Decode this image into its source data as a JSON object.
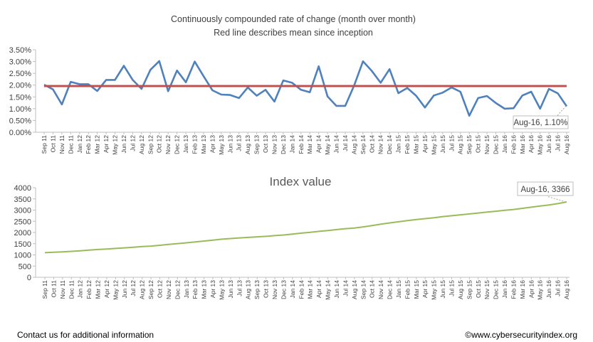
{
  "months": [
    "Sep 11",
    "Oct 11",
    "Nov 11",
    "Dec 11",
    "Jan 12",
    "Feb 12",
    "Mar 12",
    "Apr 12",
    "May 12",
    "Jun 12",
    "Jul 12",
    "Aug 12",
    "Sep 12",
    "Oct 12",
    "Nov 12",
    "Dec 12",
    "Jan 13",
    "Feb 13",
    "Mar 13",
    "Apr 13",
    "May 13",
    "Jun 13",
    "Jul 13",
    "Aug 13",
    "Sep 13",
    "Oct 13",
    "Nov 13",
    "Dec 13",
    "Jan 14",
    "Feb 14",
    "Mar 14",
    "Apr 14",
    "May 14",
    "Jun 14",
    "Jul 14",
    "Aug 14",
    "Sep 14",
    "Oct 14",
    "Nov 14",
    "Dec 14",
    "Jan 15",
    "Feb 15",
    "Mar 15",
    "Apr 15",
    "May 15",
    "Jun 15",
    "Jul 15",
    "Aug 15",
    "Sep 15",
    "Oct 15",
    "Nov 15",
    "Dec 15",
    "Jan 16",
    "Feb 16",
    "Mar 16",
    "Apr 16",
    "May 16",
    "Jun 16",
    "Jul 16",
    "Aug 16"
  ],
  "chart_data": [
    {
      "type": "line",
      "title": "Continuously compounded rate of change (month over month)",
      "subtitle": "Red line describes mean since inception",
      "ylim": [
        0,
        3.5
      ],
      "yticks": [
        "0.00%",
        "0.50%",
        "1.00%",
        "1.50%",
        "2.00%",
        "2.50%",
        "3.00%",
        "3.50%"
      ],
      "grid": false,
      "series": [
        {
          "values": [
            2.02,
            1.82,
            1.18,
            2.14,
            2.04,
            2.04,
            1.75,
            2.22,
            2.22,
            2.82,
            2.22,
            1.84,
            2.65,
            3.02,
            1.74,
            2.62,
            2.12,
            3.0,
            2.38,
            1.78,
            1.6,
            1.58,
            1.45,
            1.9,
            1.55,
            1.8,
            1.3,
            2.2,
            2.1,
            1.8,
            1.7,
            2.8,
            1.52,
            1.12,
            1.12,
            1.98,
            3.01,
            2.6,
            2.1,
            2.68,
            1.66,
            1.88,
            1.55,
            1.05,
            1.56,
            1.68,
            1.9,
            1.72,
            0.7,
            1.45,
            1.54,
            1.24,
            1.0,
            1.02,
            1.56,
            1.72,
            1.0,
            1.84,
            1.65,
            1.1
          ],
          "color": "#4f81bd"
        },
        {
          "values": [
            1.96
          ],
          "color": "#c0504d",
          "kind": "mean"
        }
      ],
      "annotation": "Aug-16, 1.10%"
    },
    {
      "type": "line",
      "title": "Index value",
      "ylim": [
        0,
        4000
      ],
      "yticks": [
        "0",
        "500",
        "1000",
        "1500",
        "2000",
        "2500",
        "3000",
        "3500",
        "4000"
      ],
      "grid": false,
      "series": [
        {
          "values": [
            1100,
            1120,
            1135,
            1160,
            1185,
            1215,
            1240,
            1265,
            1290,
            1315,
            1340,
            1370,
            1395,
            1430,
            1470,
            1505,
            1540,
            1580,
            1620,
            1660,
            1700,
            1730,
            1760,
            1780,
            1805,
            1830,
            1860,
            1890,
            1930,
            1970,
            2010,
            2050,
            2090,
            2130,
            2170,
            2200,
            2250,
            2310,
            2370,
            2430,
            2480,
            2530,
            2580,
            2620,
            2660,
            2710,
            2750,
            2790,
            2830,
            2870,
            2910,
            2950,
            2990,
            3030,
            3080,
            3130,
            3180,
            3230,
            3290,
            3366
          ],
          "color": "#9bbb59"
        }
      ],
      "annotation": "Aug-16, 3366"
    }
  ],
  "footer": {
    "contact": "Contact us for additional information",
    "copyright": "©www.cybersecurityindex.org"
  }
}
